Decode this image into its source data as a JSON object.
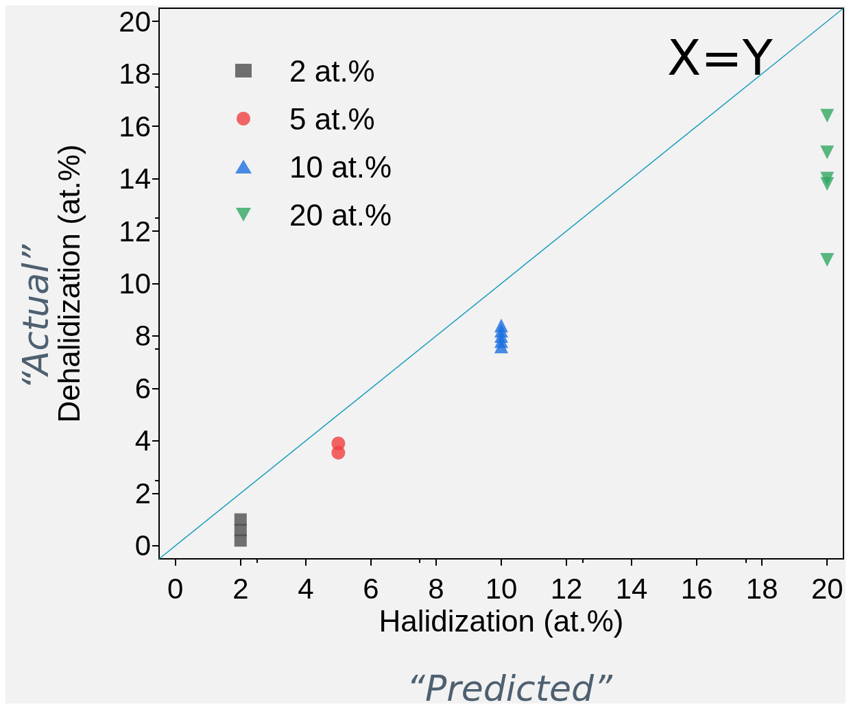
{
  "chart_data": {
    "type": "scatter",
    "xlabel": "Halidization (at.%)",
    "ylabel": "Dehalidization (at.%)",
    "xlim": [
      -0.5,
      20.5
    ],
    "ylim": [
      -0.5,
      20.5
    ],
    "xticks": [
      0,
      2,
      4,
      6,
      8,
      10,
      12,
      14,
      16,
      18,
      20
    ],
    "yticks": [
      0,
      2,
      4,
      6,
      8,
      10,
      12,
      14,
      16,
      18,
      20
    ],
    "grid": false,
    "legend": "top left",
    "series": [
      {
        "name": "2 at.%",
        "color": "#4d4d4d",
        "marker": "square",
        "x": [
          2,
          2,
          2
        ],
        "values": [
          0.2,
          0.6,
          1.0
        ]
      },
      {
        "name": "5 at.%",
        "color": "#f04040",
        "marker": "circle",
        "x": [
          5,
          5
        ],
        "values": [
          3.55,
          3.9
        ]
      },
      {
        "name": "10 at.%",
        "color": "#1a6fdf",
        "marker": "triangle",
        "x": [
          10,
          10,
          10,
          10,
          10
        ],
        "values": [
          7.6,
          7.8,
          8.0,
          8.2,
          8.4
        ]
      },
      {
        "name": "20 at.%",
        "color": "#30a860",
        "marker": "triangle-down",
        "x": [
          20,
          20,
          20,
          20,
          20
        ],
        "values": [
          16.4,
          15.0,
          14.0,
          13.8,
          10.9
        ]
      },
      {
        "type": "line",
        "color": "#1a9ec0",
        "marker": "none",
        "x": [
          -0.5,
          20.5
        ],
        "values": [
          -0.5,
          20.5
        ]
      }
    ],
    "annotations": [
      "X=Y",
      "“Actual”",
      "“Predicted”"
    ]
  }
}
